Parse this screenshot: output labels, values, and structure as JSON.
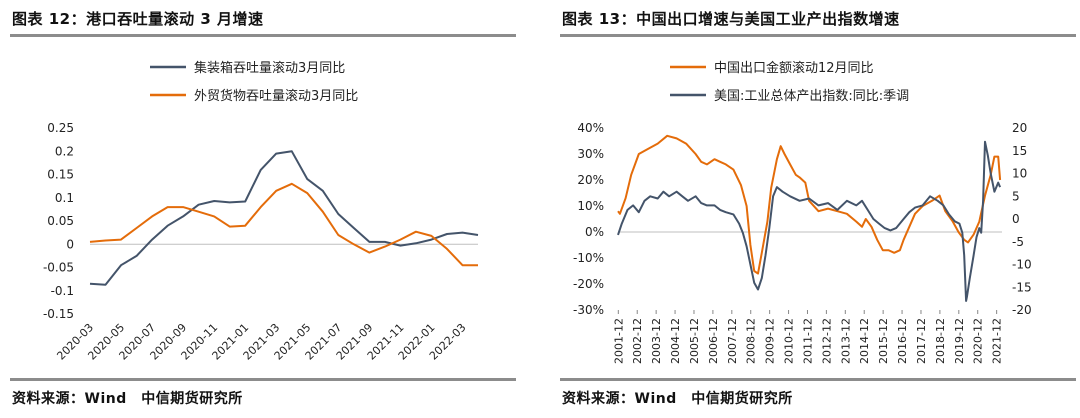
{
  "left": {
    "title": "图表 12：港口吞吐量滚动 3 月增速",
    "source": "资料来源：Wind　中信期货研究所",
    "chart_data": {
      "type": "line",
      "x": [
        "2020-03",
        "2020-04",
        "2020-05",
        "2020-06",
        "2020-07",
        "2020-08",
        "2020-09",
        "2020-10",
        "2020-11",
        "2020-12",
        "2021-01",
        "2021-02",
        "2021-03",
        "2021-04",
        "2021-05",
        "2021-06",
        "2021-07",
        "2021-08",
        "2021-09",
        "2021-10",
        "2021-11",
        "2021-12",
        "2022-01",
        "2022-02",
        "2022-03",
        "2022-04"
      ],
      "xticks": [
        "2020-03",
        "2020-05",
        "2020-07",
        "2020-09",
        "2020-11",
        "2021-01",
        "2021-03",
        "2021-05",
        "2021-07",
        "2021-09",
        "2021-11",
        "2022-01",
        "2022-03"
      ],
      "ylim": [
        -0.15,
        0.25
      ],
      "yticks": [
        "-0.15",
        "-0.1",
        "-0.05",
        "0",
        "0.05",
        "0.1",
        "0.15",
        "0.2",
        "0.25"
      ],
      "legend_position": "top",
      "series": [
        {
          "name": "集装箱吞吐量滚动3月同比",
          "color": "#44546a",
          "values": [
            -0.085,
            -0.087,
            -0.045,
            -0.025,
            0.01,
            0.04,
            0.06,
            0.085,
            0.093,
            0.09,
            0.092,
            0.16,
            0.195,
            0.2,
            0.14,
            0.115,
            0.065,
            0.035,
            0.005,
            0.005,
            -0.003,
            0.002,
            0.01,
            0.022,
            0.025,
            0.02
          ]
        },
        {
          "name": "外贸货物吞吐量滚动3月同比",
          "color": "#e46c0a",
          "values": [
            0.005,
            0.008,
            0.01,
            0.035,
            0.06,
            0.08,
            0.08,
            0.07,
            0.06,
            0.038,
            0.04,
            0.08,
            0.115,
            0.13,
            0.11,
            0.07,
            0.02,
            0.0,
            -0.018,
            -0.005,
            0.01,
            0.027,
            0.018,
            -0.01,
            -0.045,
            -0.045
          ]
        }
      ]
    }
  },
  "right": {
    "title": "图表 13：中国出口增速与美国工业产出指数增速",
    "source": "资料来源：Wind　中信期货研究所",
    "chart_data": {
      "type": "line",
      "xticks": [
        "2001-12",
        "2002-12",
        "2003-12",
        "2004-12",
        "2005-12",
        "2006-12",
        "2007-12",
        "2008-12",
        "2009-12",
        "2010-12",
        "2011-12",
        "2012-12",
        "2013-12",
        "2014-12",
        "2015-12",
        "2016-12",
        "2017-12",
        "2018-12",
        "2019-12",
        "2020-12",
        "2021-12"
      ],
      "xlim": [
        2001.9,
        2022.2
      ],
      "ylim_left": [
        -30,
        40
      ],
      "yticks_left": [
        "-30%",
        "-20%",
        "-10%",
        "0%",
        "10%",
        "20%",
        "30%",
        "40%"
      ],
      "ylim_right": [
        -20,
        20
      ],
      "yticks_right": [
        "-20",
        "-15",
        "-10",
        "-5",
        "0",
        "5",
        "10",
        "15",
        "20"
      ],
      "legend_position": "top",
      "series": [
        {
          "name": "中国出口金额滚动12月同比",
          "axis": "left",
          "color": "#e46c0a",
          "x": [
            2001.9,
            2002.0,
            2002.3,
            2002.6,
            2003.0,
            2003.5,
            2004.0,
            2004.5,
            2005.0,
            2005.5,
            2006.0,
            2006.3,
            2006.6,
            2007.0,
            2007.3,
            2007.6,
            2008.0,
            2008.4,
            2008.7,
            2008.9,
            2009.1,
            2009.3,
            2009.5,
            2009.8,
            2010.0,
            2010.3,
            2010.5,
            2010.7,
            2011.0,
            2011.3,
            2011.5,
            2011.8,
            2012.0,
            2012.5,
            2013.0,
            2013.5,
            2014.0,
            2014.5,
            2014.8,
            2015.0,
            2015.3,
            2015.6,
            2015.9,
            2016.2,
            2016.5,
            2016.8,
            2017.0,
            2017.3,
            2017.6,
            2018.0,
            2018.5,
            2018.9,
            2019.2,
            2019.6,
            2019.9,
            2020.2,
            2020.4,
            2020.7,
            2021.0,
            2021.3,
            2021.6,
            2021.8,
            2022.0,
            2022.1
          ],
          "values": [
            8,
            7,
            13,
            22,
            30,
            32,
            34,
            37,
            36,
            34,
            30,
            27,
            26,
            28,
            27,
            26,
            24,
            18,
            10,
            -5,
            -15,
            -16,
            -8,
            4,
            17,
            28,
            33,
            30,
            26,
            22,
            21,
            19,
            12,
            8,
            9,
            8,
            7,
            4,
            2,
            5,
            2,
            -3,
            -7,
            -7,
            -8,
            -7,
            -3,
            2,
            7,
            10,
            12,
            14,
            8,
            4,
            0,
            -3,
            -4,
            -1,
            4,
            14,
            22,
            29,
            29,
            20
          ]
        },
        {
          "name": "美国:工业总体产出指数:同比:季调",
          "axis": "right",
          "color": "#44546a",
          "x": [
            2001.9,
            2002.1,
            2002.4,
            2002.7,
            2003.0,
            2003.3,
            2003.6,
            2004.0,
            2004.3,
            2004.6,
            2005.0,
            2005.3,
            2005.6,
            2006.0,
            2006.3,
            2006.6,
            2007.0,
            2007.3,
            2007.6,
            2008.0,
            2008.3,
            2008.5,
            2008.7,
            2008.9,
            2009.1,
            2009.3,
            2009.5,
            2009.7,
            2009.9,
            2010.1,
            2010.3,
            2010.6,
            2011.0,
            2011.5,
            2012.0,
            2012.5,
            2013.0,
            2013.5,
            2014.0,
            2014.5,
            2014.8,
            2015.1,
            2015.4,
            2015.7,
            2016.0,
            2016.3,
            2016.6,
            2017.0,
            2017.3,
            2017.6,
            2018.0,
            2018.4,
            2018.8,
            2019.1,
            2019.4,
            2019.7,
            2019.95,
            2020.1,
            2020.2,
            2020.3,
            2020.35,
            2020.5,
            2020.7,
            2020.85,
            2021.0,
            2021.1,
            2021.2,
            2021.3,
            2021.45,
            2021.6,
            2021.8,
            2022.0,
            2022.1
          ],
          "values": [
            -3.5,
            -1,
            2,
            3,
            1.5,
            4,
            5,
            4.5,
            6,
            5,
            6,
            5,
            4,
            5,
            3.5,
            3,
            3,
            2,
            1.5,
            1,
            -1,
            -3,
            -6,
            -10,
            -14,
            -15.5,
            -13,
            -8,
            -2,
            5,
            7,
            6,
            5,
            4,
            4.5,
            3,
            3.5,
            2,
            4,
            3,
            4,
            2,
            0,
            -1,
            -2,
            -2.5,
            -2,
            0,
            1.5,
            2.5,
            3,
            5,
            4,
            3,
            1,
            -0.5,
            -1,
            -3,
            -8,
            -18,
            -17,
            -13,
            -8,
            -4,
            -2,
            -3,
            4,
            17,
            14,
            10,
            6,
            8,
            7
          ]
        }
      ]
    }
  }
}
